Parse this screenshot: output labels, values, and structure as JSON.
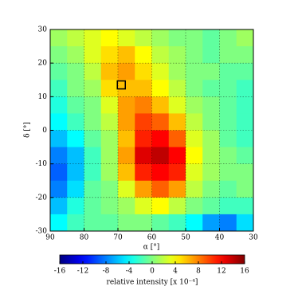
{
  "chart_data": {
    "type": "heatmap",
    "xlabel": "α [°]",
    "ylabel": "δ [°]",
    "xlim": [
      90,
      30
    ],
    "ylim": [
      -30,
      30
    ],
    "xticks": [
      90,
      80,
      70,
      60,
      50,
      40,
      30
    ],
    "yticks": [
      -30,
      -20,
      -10,
      0,
      10,
      20,
      30
    ],
    "grid": true,
    "xbins": [
      90,
      85,
      80,
      75,
      70,
      65,
      60,
      55,
      50,
      45,
      40,
      35,
      30
    ],
    "ybins": [
      30,
      25,
      20,
      15,
      10,
      5,
      0,
      -5,
      -10,
      -15,
      -20,
      -25,
      -30
    ],
    "z": [
      [
        1,
        2,
        3,
        4,
        3,
        2,
        1,
        0,
        0,
        -1,
        0,
        1
      ],
      [
        0,
        1,
        3,
        5,
        6,
        4,
        2,
        1,
        0,
        -1,
        0,
        0
      ],
      [
        -1,
        0,
        2,
        6,
        7,
        5,
        3,
        1,
        0,
        0,
        -1,
        -1
      ],
      [
        -2,
        0,
        1,
        5,
        6,
        6,
        4,
        2,
        0,
        -1,
        -1,
        -2
      ],
      [
        -3,
        -1,
        0,
        3,
        7,
        8,
        6,
        3,
        1,
        0,
        -1,
        -2
      ],
      [
        -4,
        -2,
        0,
        2,
        7,
        10,
        9,
        6,
        2,
        0,
        -1,
        -2
      ],
      [
        -6,
        -4,
        -1,
        1,
        6,
        11,
        12,
        9,
        3,
        1,
        -1,
        -2
      ],
      [
        -8,
        -6,
        -2,
        1,
        7,
        13,
        14,
        12,
        4,
        1,
        0,
        -1
      ],
      [
        -9,
        -6,
        -2,
        1,
        6,
        11,
        12,
        11,
        3,
        1,
        0,
        0
      ],
      [
        -8,
        -5,
        -1,
        0,
        3,
        7,
        9,
        7,
        2,
        0,
        -1,
        0
      ],
      [
        -6,
        -3,
        -1,
        0,
        1,
        3,
        4,
        2,
        0,
        -1,
        -2,
        -2
      ],
      [
        -4,
        -2,
        -1,
        -1,
        0,
        0,
        -1,
        -2,
        -4,
        -7,
        -8,
        -5
      ]
    ],
    "marker": {
      "x": 69,
      "y": 13.5
    },
    "colorbar_label": "relative intensity [x 10⁻⁴]",
    "clim": [
      -16,
      16
    ],
    "cticks": [
      -16,
      -12,
      -8,
      -4,
      0,
      4,
      8,
      12,
      16
    ]
  }
}
